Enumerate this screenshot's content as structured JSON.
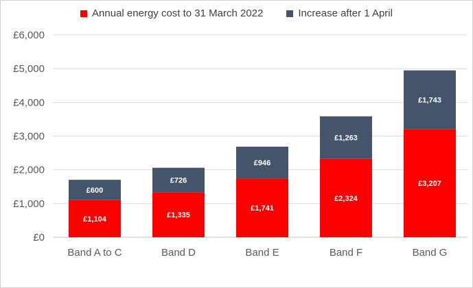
{
  "chart_data": {
    "type": "bar",
    "stacked": true,
    "categories": [
      "Band A to C",
      "Band D",
      "Band E",
      "Band F",
      "Band G"
    ],
    "series": [
      {
        "name": "Annual energy cost to 31 March 2022",
        "values": [
          1104,
          1335,
          1741,
          2324,
          3207
        ],
        "color": "#ff0000",
        "labels": [
          "£1,104",
          "£1,335",
          "£1,741",
          "£2,324",
          "£3,207"
        ]
      },
      {
        "name": "Increase after 1 April",
        "values": [
          600,
          726,
          946,
          1263,
          1743
        ],
        "color": "#44546a",
        "labels": [
          "£600",
          "£726",
          "£946",
          "£1,263",
          "£1,743"
        ]
      }
    ],
    "ylim": [
      0,
      6000
    ],
    "yticks": [
      0,
      1000,
      2000,
      3000,
      4000,
      5000,
      6000
    ],
    "ytick_labels": [
      "£0",
      "£1,000",
      "£2,000",
      "£3,000",
      "£4,000",
      "£5,000",
      "£6,000"
    ],
    "grid": true,
    "legend_position": "top",
    "title": "",
    "xlabel": "",
    "ylabel": ""
  }
}
